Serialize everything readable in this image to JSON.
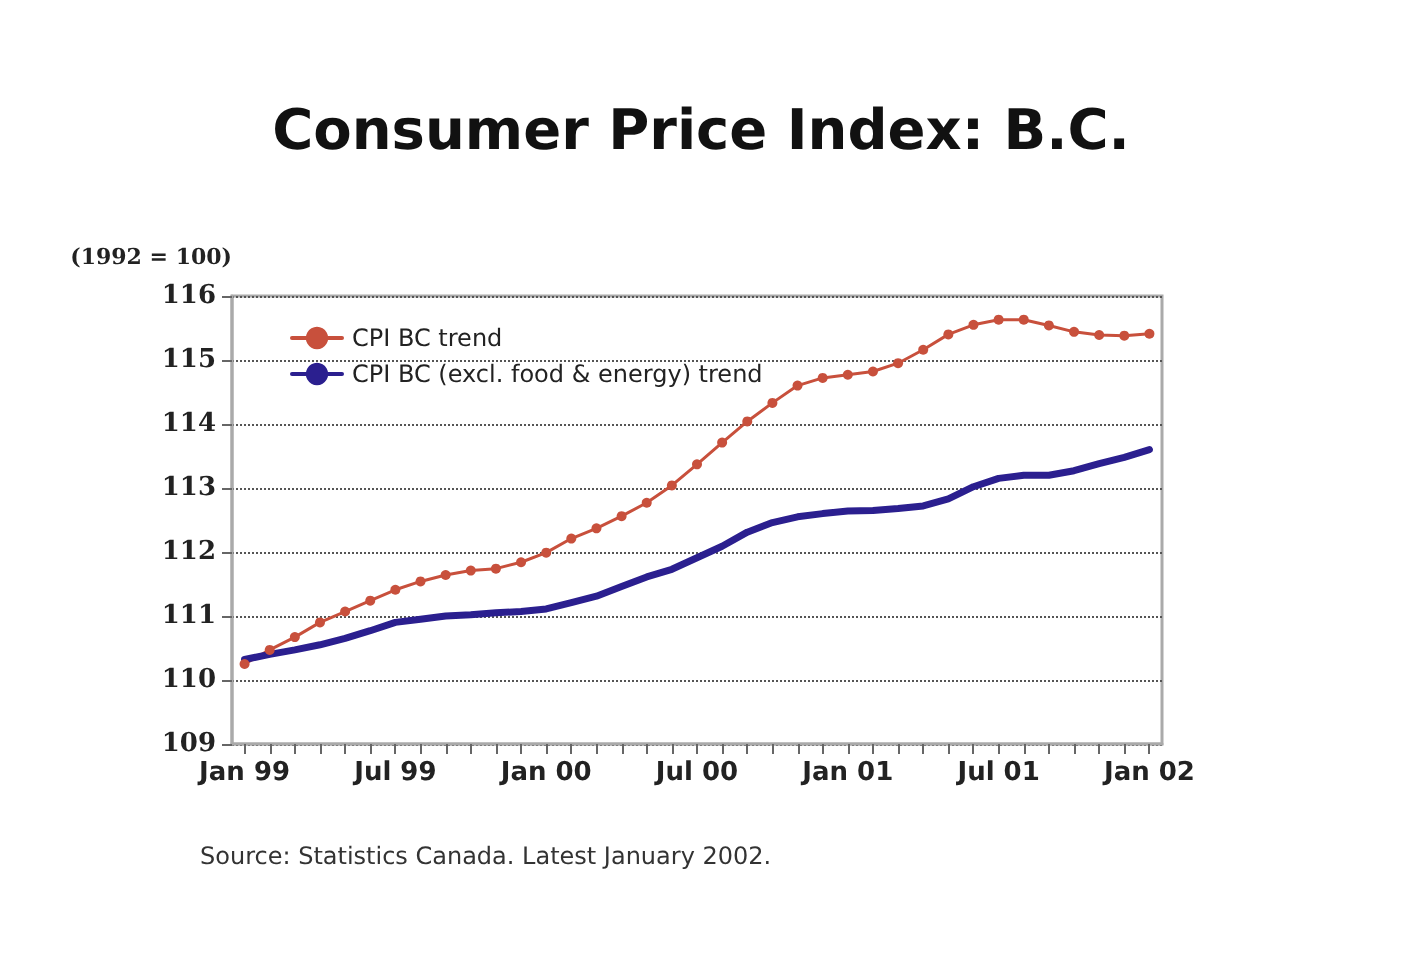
{
  "chart_data": {
    "type": "line",
    "title": "Consumer Price Index: B.C.",
    "ylabel": "(1992 = 100)",
    "categories": [
      "Jan 99",
      null,
      null,
      null,
      null,
      null,
      "Jul 99",
      null,
      null,
      null,
      null,
      null,
      "Jan 00",
      null,
      null,
      null,
      null,
      null,
      "Jul 00",
      null,
      null,
      null,
      null,
      null,
      "Jan 01",
      null,
      null,
      null,
      null,
      null,
      "Jul 01",
      null,
      null,
      null,
      null,
      null,
      "Jan 02"
    ],
    "series": [
      {
        "name": "CPI BC trend",
        "color": "#c8503c",
        "marker": "circle",
        "values": [
          110.25,
          110.47,
          110.67,
          110.9,
          111.07,
          111.24,
          111.41,
          111.54,
          111.64,
          111.71,
          111.74,
          111.84,
          111.99,
          112.21,
          112.37,
          112.56,
          112.77,
          113.04,
          113.37,
          113.71,
          114.04,
          114.33,
          114.6,
          114.72,
          114.77,
          114.82,
          114.95,
          115.16,
          115.4,
          115.55,
          115.63,
          115.63,
          115.54,
          115.44,
          115.39,
          115.38,
          115.41
        ]
      },
      {
        "name": "CPI BC (excl. food & energy) trend",
        "color": "#2b1f8f",
        "marker": "none",
        "values": [
          110.32,
          110.4,
          110.47,
          110.55,
          110.65,
          110.77,
          110.9,
          110.95,
          111.0,
          111.02,
          111.05,
          111.07,
          111.11,
          111.21,
          111.31,
          111.46,
          111.61,
          111.73,
          111.91,
          112.09,
          112.31,
          112.46,
          112.55,
          112.6,
          112.64,
          112.65,
          112.68,
          112.72,
          112.83,
          113.02,
          113.15,
          113.2,
          113.2,
          113.27,
          113.38,
          113.48,
          113.6
        ]
      }
    ],
    "ylim": [
      109,
      116
    ],
    "yticks": [
      109,
      110,
      111,
      112,
      113,
      114,
      115,
      116
    ],
    "grid": "y",
    "legend": "top left",
    "line_style": "solid",
    "annotations": [
      "Source: Statistics Canada. Latest January 2002."
    ]
  }
}
